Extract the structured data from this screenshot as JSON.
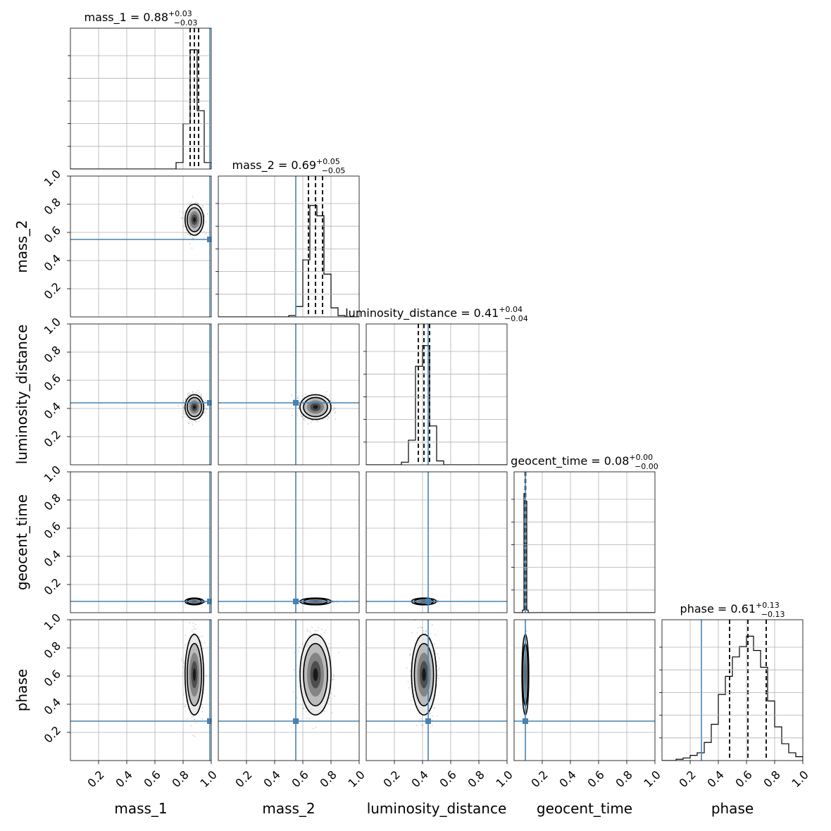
{
  "chart_data": {
    "type": "corner",
    "grid": true,
    "axis_range": [
      0.0,
      1.0
    ],
    "tick_labels": [
      "0.2",
      "0.4",
      "0.6",
      "0.8",
      "1.0"
    ],
    "tick_values": [
      0.2,
      0.4,
      0.6,
      0.8,
      1.0
    ],
    "colors": {
      "truth": "#4682b4",
      "ink": "#000000",
      "grid": "#b0b0b0",
      "density_shades": [
        "#ffffff",
        "#e6e6e6",
        "#b3b3b3",
        "#7a7a7a",
        "#444444",
        "#111111"
      ]
    },
    "parameters": [
      {
        "label": "mass_1",
        "title": {
          "main": "mass_1 = 0.88",
          "upper": "+0.03",
          "lower": "−0.03"
        },
        "median": 0.88,
        "sigma": 0.03,
        "truth": 0.99,
        "quantiles": [
          0.85,
          0.88,
          0.91
        ],
        "hist_bins": [
          0.75,
          0.8,
          0.85,
          0.9,
          0.95,
          1.0
        ],
        "hist_counts": [
          0.05,
          0.35,
          0.92,
          0.45,
          0.05
        ]
      },
      {
        "label": "mass_2",
        "title": {
          "main": "mass_2 = 0.69",
          "upper": "+0.05",
          "lower": "−0.05"
        },
        "median": 0.69,
        "sigma": 0.05,
        "truth": 0.55,
        "quantiles": [
          0.64,
          0.69,
          0.74
        ],
        "hist_bins": [
          0.5,
          0.55,
          0.6,
          0.65,
          0.7,
          0.75,
          0.8,
          0.85,
          0.9
        ],
        "hist_counts": [
          0.01,
          0.08,
          0.44,
          0.86,
          0.78,
          0.33,
          0.07,
          0.01
        ]
      },
      {
        "label": "luminosity_distance",
        "title": {
          "main": "luminosity_distance = 0.41",
          "upper": "+0.04",
          "lower": "−0.04"
        },
        "median": 0.41,
        "sigma": 0.04,
        "truth": 0.44,
        "quantiles": [
          0.37,
          0.41,
          0.45
        ],
        "hist_bins": [
          0.25,
          0.3,
          0.35,
          0.4,
          0.45,
          0.5,
          0.55
        ],
        "hist_counts": [
          0.02,
          0.19,
          0.76,
          0.92,
          0.3,
          0.03
        ]
      },
      {
        "label": "geocent_time",
        "title": {
          "main": "geocent_time = 0.08",
          "upper": "+0.00",
          "lower": "−0.00"
        },
        "median": 0.08,
        "sigma": 0.004,
        "truth": 0.08,
        "quantiles": [
          0.078,
          0.08,
          0.082
        ],
        "hist_bins": [
          0.06,
          0.07,
          0.08,
          0.09,
          0.1
        ],
        "hist_counts": [
          0.02,
          0.92,
          0.86,
          0.02
        ]
      },
      {
        "label": "phase",
        "title": {
          "main": "phase = 0.61",
          "upper": "+0.13",
          "lower": "−0.13"
        },
        "median": 0.61,
        "sigma": 0.13,
        "truth": 0.28,
        "quantiles": [
          0.48,
          0.61,
          0.74
        ],
        "hist_bins": [
          0.1,
          0.15,
          0.2,
          0.25,
          0.3,
          0.35,
          0.4,
          0.45,
          0.5,
          0.55,
          0.6,
          0.65,
          0.7,
          0.75,
          0.8,
          0.85,
          0.9,
          0.95,
          1.0
        ],
        "hist_counts": [
          0.01,
          0.02,
          0.04,
          0.06,
          0.14,
          0.28,
          0.51,
          0.65,
          0.8,
          0.88,
          0.96,
          0.85,
          0.72,
          0.46,
          0.26,
          0.13,
          0.06,
          0.03
        ]
      }
    ]
  }
}
